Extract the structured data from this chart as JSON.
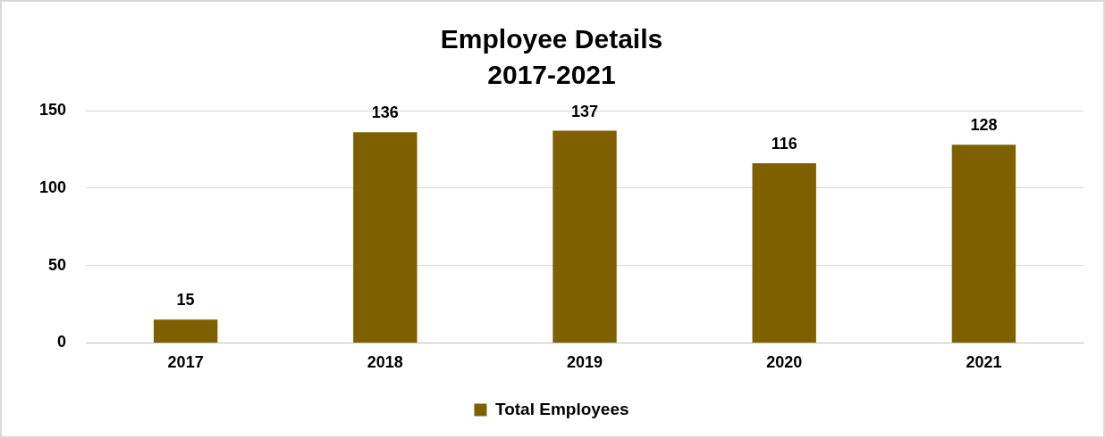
{
  "chart_data": {
    "type": "bar",
    "title": "Employee Details",
    "subtitle": "2017-2021",
    "categories": [
      "2017",
      "2018",
      "2019",
      "2020",
      "2021"
    ],
    "series": [
      {
        "name": "Total Employees",
        "color": "#7f6000",
        "values": [
          15,
          136,
          137,
          116,
          128
        ]
      }
    ],
    "ylim": [
      0,
      150
    ],
    "yticks": [
      0,
      50,
      100,
      150
    ],
    "grid": "y",
    "legend": "bottom",
    "data_labels": true
  }
}
